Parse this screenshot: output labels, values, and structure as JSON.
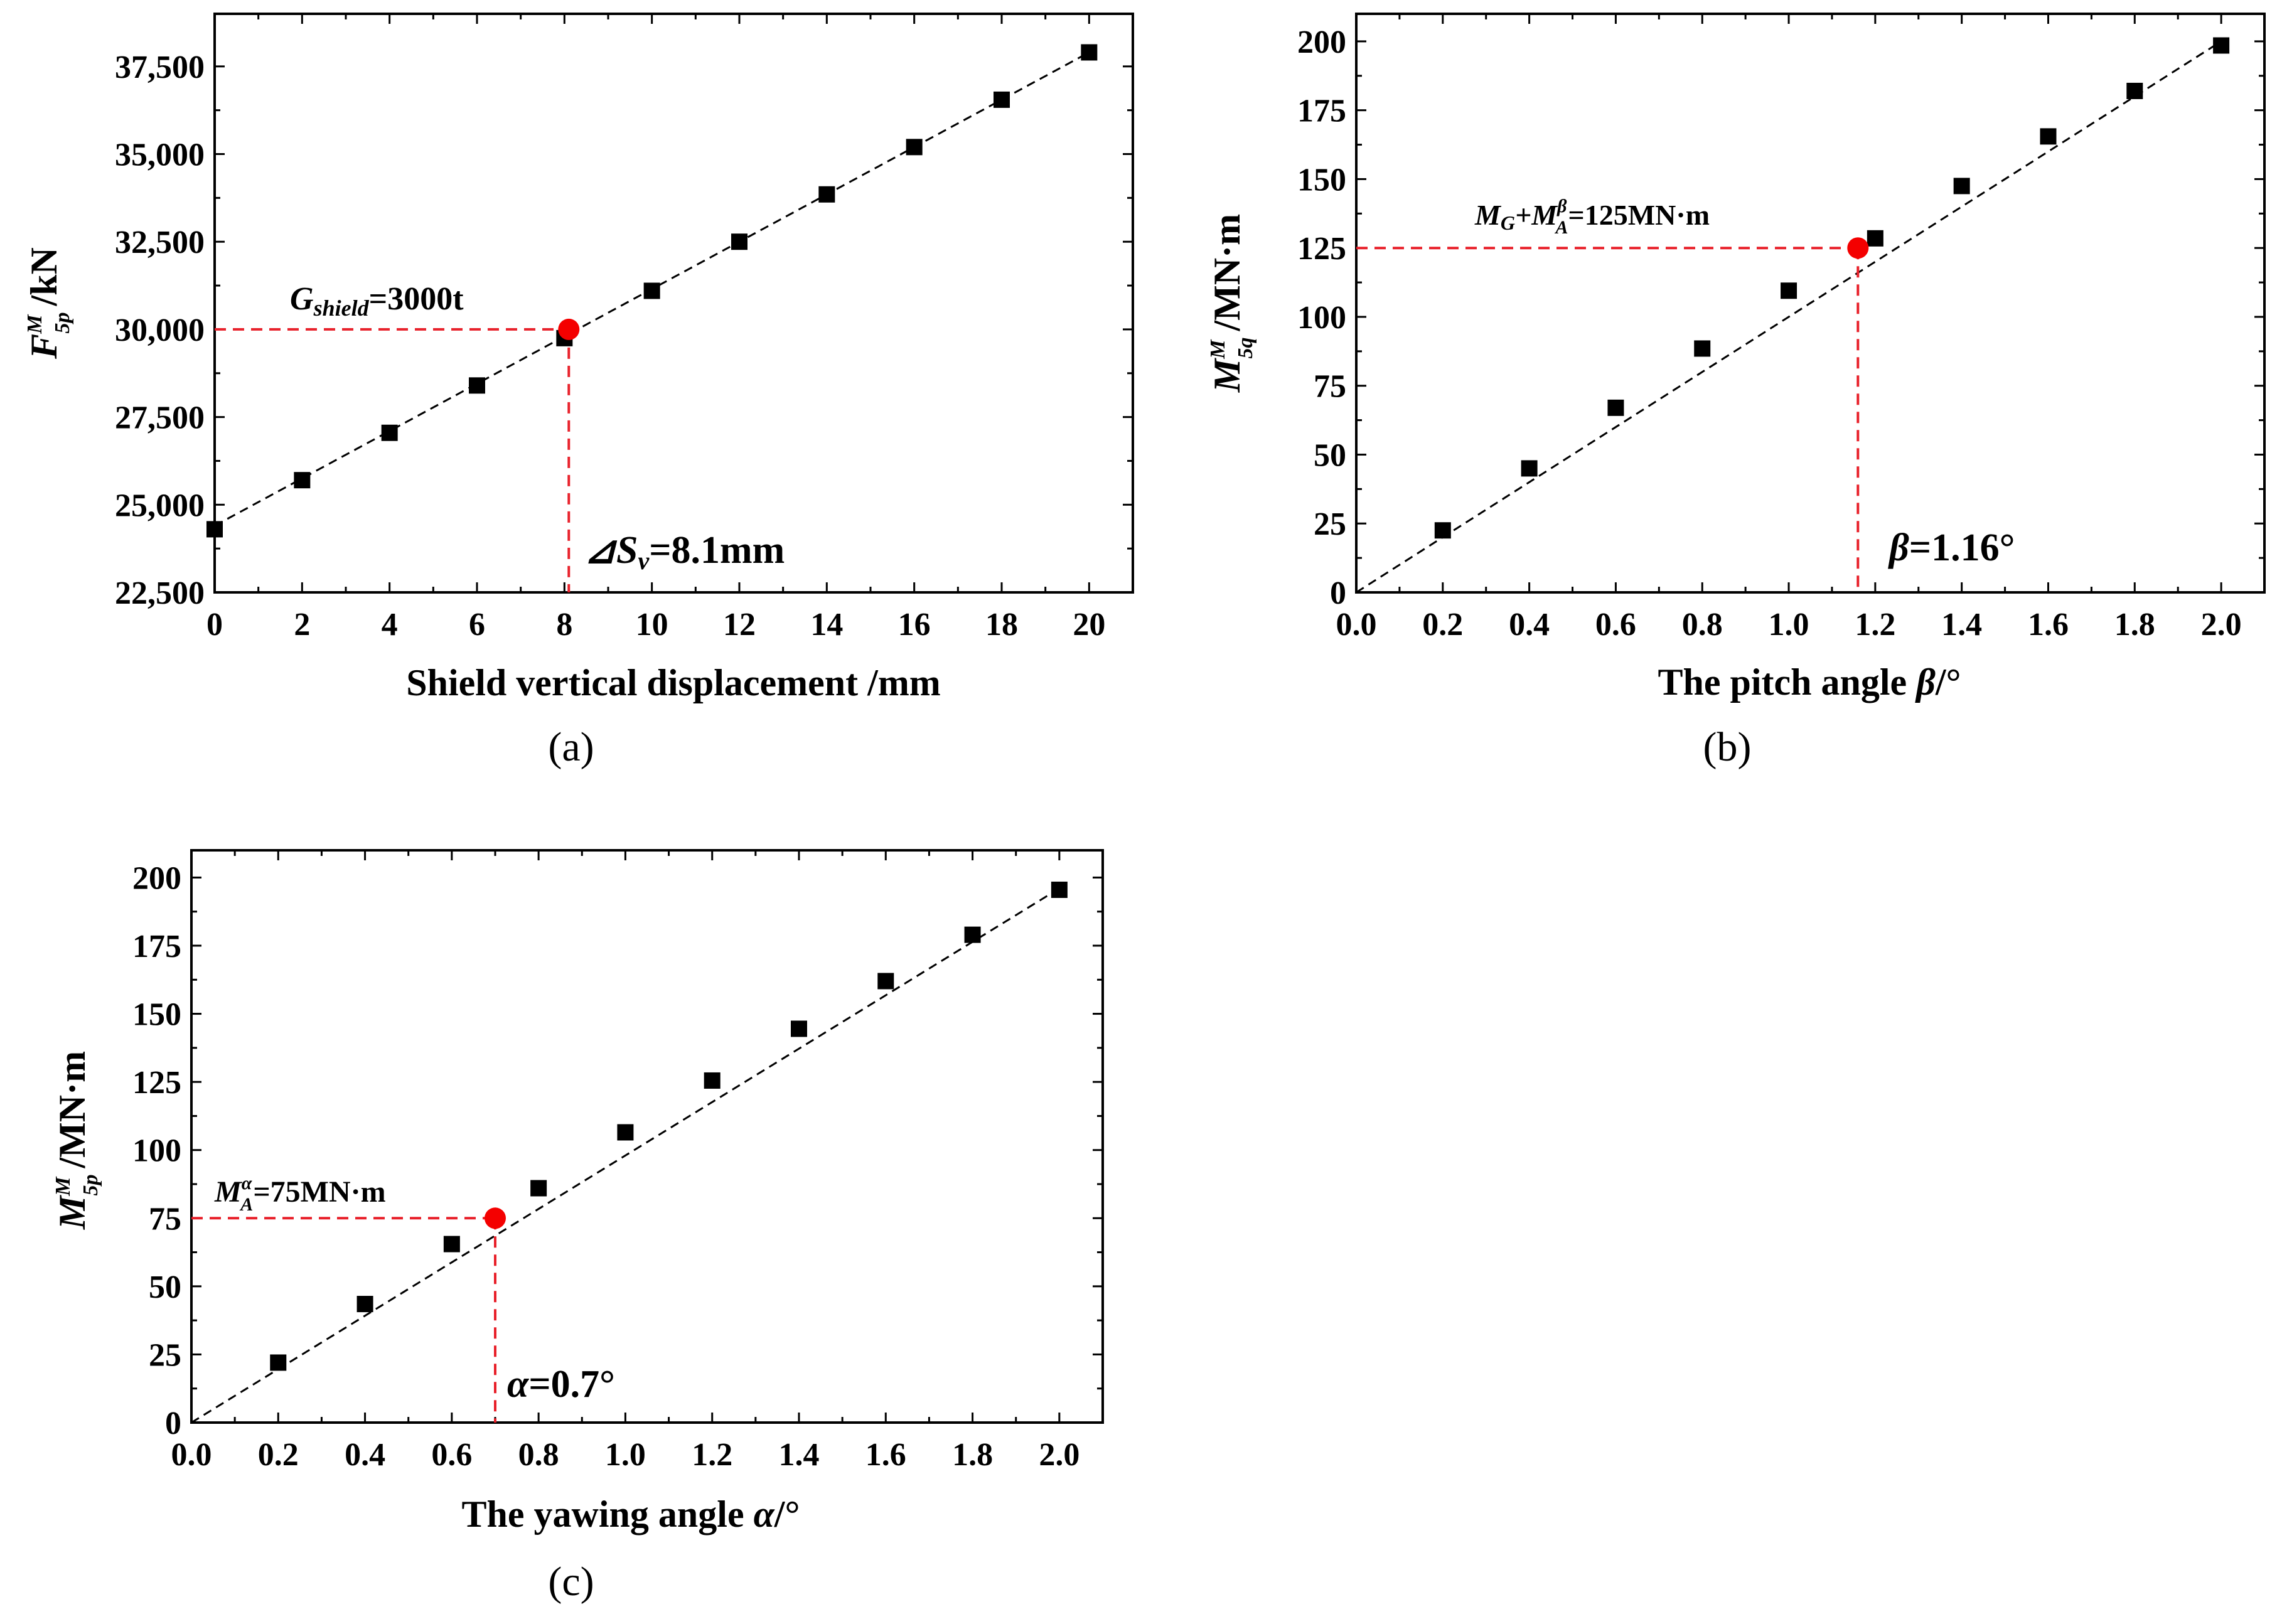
{
  "chart_data": [
    {
      "id": "a",
      "type": "scatter",
      "caption": "(a)",
      "xlabel": "Shield vertical displacement /mm",
      "ylabel": {
        "symbol": "F",
        "sup": "M",
        "sub": "5p",
        "unit": "/kN"
      },
      "xlim": [
        0,
        21
      ],
      "ylim": [
        22500,
        39000
      ],
      "xticks": [
        0,
        2,
        4,
        6,
        8,
        10,
        12,
        14,
        16,
        18,
        20
      ],
      "xtick_labels": [
        "0",
        "2",
        "4",
        "6",
        "8",
        "10",
        "12",
        "14",
        "16",
        "18",
        "20"
      ],
      "yticks": [
        22500,
        25000,
        27500,
        30000,
        32500,
        35000,
        37500
      ],
      "ytick_labels": [
        "22,500",
        "25,000",
        "27,500",
        "30,000",
        "32,500",
        "35,000",
        "37,500"
      ],
      "x": [
        0,
        2,
        4,
        6,
        8,
        10,
        12,
        14,
        16,
        18,
        20
      ],
      "y": [
        24300,
        25700,
        27050,
        28400,
        29750,
        31100,
        32500,
        33850,
        35200,
        36550,
        37900
      ],
      "fit": {
        "x0": 0,
        "y0": 24400,
        "x1": 20,
        "y1": 37900
      },
      "highlight": {
        "x": 8.1,
        "y": 30000
      },
      "annotation_top": {
        "main": "G",
        "sub": "shield",
        "rest": "=3000t"
      },
      "annotation_bottom": {
        "main": "⊿S",
        "sub": "v",
        "rest": "=8.1mm"
      }
    },
    {
      "id": "b",
      "type": "scatter",
      "caption": "(b)",
      "xlabel": {
        "prefix": "The pitch angle ",
        "var": "β",
        "suffix": "/°"
      },
      "ylabel": {
        "symbol": "M",
        "sup": "M",
        "sub": "5q",
        "unit": "/MN·m"
      },
      "xlim": [
        0,
        2.1
      ],
      "ylim": [
        0,
        210
      ],
      "xticks": [
        0,
        0.2,
        0.4,
        0.6,
        0.8,
        1.0,
        1.2,
        1.4,
        1.6,
        1.8,
        2.0
      ],
      "xtick_labels": [
        "0.0",
        "0.2",
        "0.4",
        "0.6",
        "0.8",
        "1.0",
        "1.2",
        "1.4",
        "1.6",
        "1.8",
        "2.0"
      ],
      "yticks": [
        0,
        25,
        50,
        75,
        100,
        125,
        150,
        175,
        200
      ],
      "ytick_labels": [
        "0",
        "25",
        "50",
        "75",
        "100",
        "125",
        "150",
        "175",
        "200"
      ],
      "x": [
        0.2,
        0.4,
        0.6,
        0.8,
        1.0,
        1.2,
        1.4,
        1.6,
        1.8,
        2.0
      ],
      "y": [
        22.5,
        45,
        67,
        88.5,
        109.5,
        128.5,
        147.5,
        165.5,
        182,
        198.5
      ],
      "fit": {
        "x0": 0,
        "y0": 0,
        "x1": 2.0,
        "y1": 200
      },
      "highlight": {
        "x": 1.16,
        "y": 125
      },
      "annotation_top": {
        "t1": "M",
        "s1": "G",
        "t2": "+M",
        "s2": "A",
        "sup2": "β",
        "rest": "=125MN·m"
      },
      "annotation_bottom": {
        "var": "β",
        "rest": "=1.16°"
      }
    },
    {
      "id": "c",
      "type": "scatter",
      "caption": "(c)",
      "xlabel": {
        "prefix": "The yawing angle ",
        "var": "α",
        "suffix": "/°"
      },
      "ylabel": {
        "symbol": "M",
        "sup": "M",
        "sub": "5p",
        "unit": "/MN·m"
      },
      "xlim": [
        0,
        2.1
      ],
      "ylim": [
        0,
        210
      ],
      "xticks": [
        0,
        0.2,
        0.4,
        0.6,
        0.8,
        1.0,
        1.2,
        1.4,
        1.6,
        1.8,
        2.0
      ],
      "xtick_labels": [
        "0.0",
        "0.2",
        "0.4",
        "0.6",
        "0.8",
        "1.0",
        "1.2",
        "1.4",
        "1.6",
        "1.8",
        "2.0"
      ],
      "yticks": [
        0,
        25,
        50,
        75,
        100,
        125,
        150,
        175,
        200
      ],
      "ytick_labels": [
        "0",
        "25",
        "50",
        "75",
        "100",
        "125",
        "150",
        "175",
        "200"
      ],
      "x": [
        0.2,
        0.4,
        0.6,
        0.8,
        1.0,
        1.2,
        1.4,
        1.6,
        1.8,
        2.0
      ],
      "y": [
        22,
        43.5,
        65.5,
        86,
        106.5,
        125.5,
        144.5,
        162,
        179,
        195.5
      ],
      "fit": {
        "x0": 0,
        "y0": 0,
        "x1": 2.0,
        "y1": 196
      },
      "highlight": {
        "x": 0.7,
        "y": 75
      },
      "annotation_top": {
        "t1": "M",
        "s1": "A",
        "sup1": "α",
        "rest": "=75MN·m"
      },
      "annotation_bottom": {
        "var": "α",
        "rest": "=0.7°"
      }
    }
  ]
}
